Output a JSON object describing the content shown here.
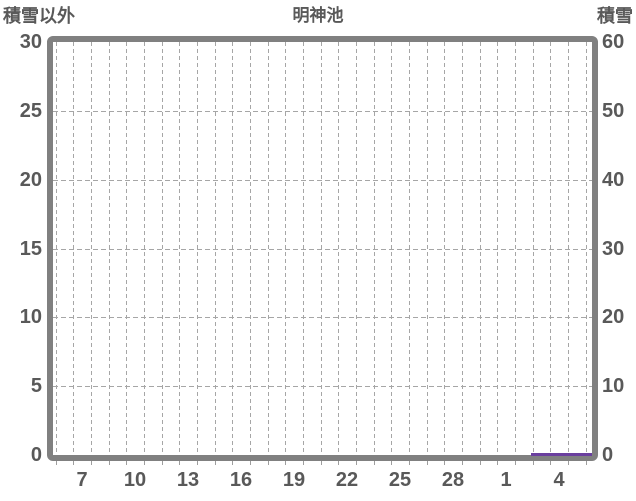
{
  "chart_data": {
    "type": "line",
    "title": "明神池",
    "left_axis": {
      "label": "積雪以外",
      "range": [
        0,
        30
      ],
      "ticks": [
        30,
        25,
        20,
        15,
        10,
        5,
        0
      ]
    },
    "right_axis": {
      "label": "積雪",
      "range": [
        0,
        60
      ],
      "ticks": [
        60,
        50,
        40,
        30,
        20,
        10,
        0
      ]
    },
    "x_axis": {
      "tick_labels": [
        "7",
        "10",
        "13",
        "16",
        "19",
        "22",
        "25",
        "28",
        "1",
        "4"
      ],
      "gridlines": "one-per-day-dashed"
    },
    "grid": true,
    "legend_position": "none",
    "series": [
      {
        "name": "積雪",
        "axis": "right",
        "color": "#6a3f9e",
        "x_span": [
          "3",
          "6"
        ],
        "values": [
          0,
          0
        ],
        "description": "flat line at 0 along the bottom edge near the right side"
      }
    ],
    "colors": {
      "frame": "#808080",
      "gridline": "#a6a6a6",
      "text": "#595959",
      "background": "#ffffff"
    }
  }
}
